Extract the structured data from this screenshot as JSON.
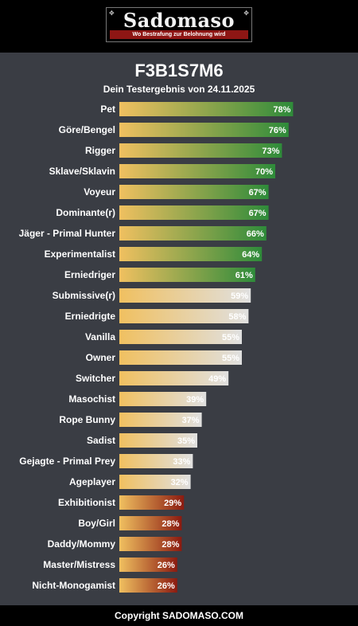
{
  "logo": {
    "title": "Sadomaso",
    "tagline": "Wo Bestrafung zur Belohnung wird"
  },
  "header": {
    "title": "F3B1S7M6",
    "subtitle": "Dein Testergebnis von 24.11.2025"
  },
  "colors": {
    "high_end": "#2e8b3a",
    "mid_end": "#e0e0e0",
    "low_end": "#8b1a10",
    "bar_start": "#f0c060"
  },
  "chart_data": {
    "type": "bar",
    "orientation": "horizontal",
    "unit": "%",
    "xlim": [
      0,
      100
    ],
    "categories": [
      "Pet",
      "Göre/Bengel",
      "Rigger",
      "Sklave/Sklavin",
      "Voyeur",
      "Dominante(r)",
      "Jäger - Primal Hunter",
      "Experimentalist",
      "Erniedriger",
      "Submissive(r)",
      "Erniedrigte",
      "Vanilla",
      "Owner",
      "Switcher",
      "Masochist",
      "Rope Bunny",
      "Sadist",
      "Gejagte - Primal Prey",
      "Ageplayer",
      "Exhibitionist",
      "Boy/Girl",
      "Daddy/Mommy",
      "Master/Mistress",
      "Nicht-Monogamist"
    ],
    "values": [
      78,
      76,
      73,
      70,
      67,
      67,
      66,
      64,
      61,
      59,
      58,
      55,
      55,
      49,
      39,
      37,
      35,
      33,
      32,
      29,
      28,
      28,
      26,
      26
    ],
    "data_labels": [
      "78%",
      "76%",
      "73%",
      "70%",
      "67%",
      "67%",
      "66%",
      "64%",
      "61%",
      "59%",
      "58%",
      "55%",
      "55%",
      "49%",
      "39%",
      "37%",
      "35%",
      "33%",
      "32%",
      "29%",
      "28%",
      "28%",
      "26%",
      "26%"
    ],
    "grid": false,
    "legend": "none"
  },
  "footer": {
    "text": "Copyright SADOMASO.COM"
  }
}
